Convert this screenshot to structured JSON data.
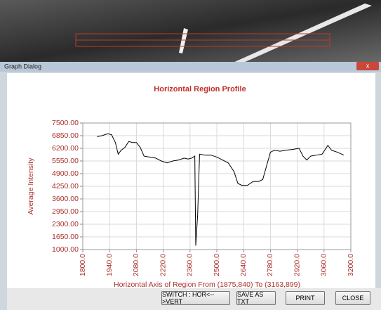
{
  "window": {
    "title": "Graph Dialog",
    "buttons": [
      "SWITCH : HOR<-->VERT",
      "SAVE AS TXT",
      "PRINT",
      "CLOSE"
    ]
  },
  "chart_data": {
    "type": "line",
    "title": "Horizontal Region Profile",
    "x_label": "Horizontal Axis of Region From (1875,840) To (3163,899)",
    "y_label": "Average Intensity",
    "xlim": [
      1800,
      3200
    ],
    "ylim": [
      1000,
      7500
    ],
    "xticks": [
      {
        "value": 1800,
        "label": "1800.0"
      },
      {
        "value": 1940,
        "label": "1940.0"
      },
      {
        "value": 2080,
        "label": "2080.0"
      },
      {
        "value": 2220,
        "label": "2220.0"
      },
      {
        "value": 2360,
        "label": "2360.0"
      },
      {
        "value": 2500,
        "label": "2500.0"
      },
      {
        "value": 2640,
        "label": "2640.0"
      },
      {
        "value": 2780,
        "label": "2780.0"
      },
      {
        "value": 2920,
        "label": "2920.0"
      },
      {
        "value": 3060,
        "label": "3060.0"
      },
      {
        "value": 3200,
        "label": "3200.0"
      }
    ],
    "yticks": [
      {
        "value": 1000,
        "label": "1000.00"
      },
      {
        "value": 1650,
        "label": "1650.00"
      },
      {
        "value": 2300,
        "label": "2300.00"
      },
      {
        "value": 2950,
        "label": "2950.00"
      },
      {
        "value": 3600,
        "label": "3600.00"
      },
      {
        "value": 4250,
        "label": "4250.00"
      },
      {
        "value": 4900,
        "label": "4900.00"
      },
      {
        "value": 5550,
        "label": "5550.00"
      },
      {
        "value": 6200,
        "label": "6200.00"
      },
      {
        "value": 6850,
        "label": "6850.00"
      },
      {
        "value": 7500,
        "label": "7500.00"
      }
    ],
    "grid": true,
    "series": [
      {
        "color": "#000000",
        "x": [
          1875,
          1900,
          1930,
          1950,
          1970,
          1985,
          2000,
          2020,
          2040,
          2060,
          2080,
          2100,
          2120,
          2150,
          2180,
          2210,
          2240,
          2270,
          2300,
          2330,
          2350,
          2370,
          2385,
          2390,
          2400,
          2410,
          2440,
          2470,
          2500,
          2530,
          2560,
          2590,
          2610,
          2630,
          2660,
          2690,
          2720,
          2740,
          2760,
          2780,
          2800,
          2830,
          2860,
          2900,
          2930,
          2950,
          2970,
          2990,
          3020,
          3050,
          3080,
          3100,
          3130,
          3163
        ],
        "values": [
          6800,
          6850,
          6950,
          6900,
          6500,
          5900,
          6100,
          6250,
          6550,
          6500,
          6500,
          6250,
          5800,
          5750,
          5700,
          5550,
          5450,
          5550,
          5600,
          5700,
          5650,
          5700,
          5800,
          1200,
          2800,
          5900,
          5850,
          5850,
          5750,
          5600,
          5450,
          5000,
          4400,
          4300,
          4300,
          4500,
          4500,
          4600,
          5300,
          6000,
          6100,
          6050,
          6100,
          6150,
          6200,
          5800,
          5600,
          5800,
          5850,
          5900,
          6350,
          6100,
          6000,
          5850
        ]
      }
    ]
  }
}
